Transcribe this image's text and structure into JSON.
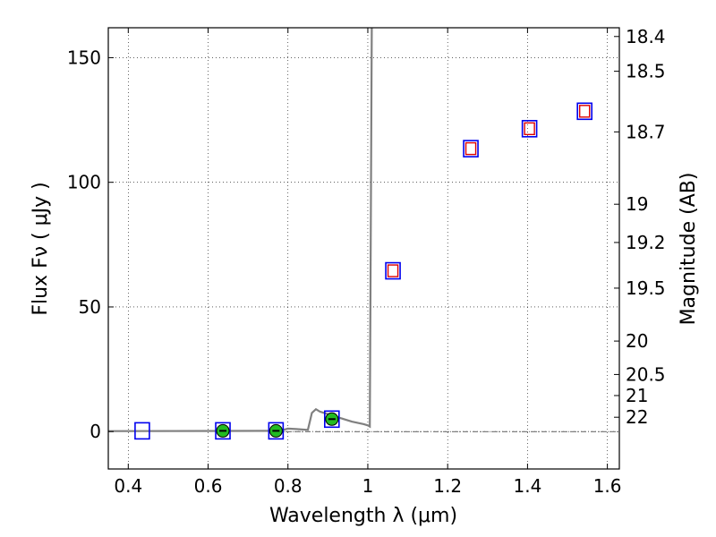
{
  "chart_data": {
    "type": "scatter",
    "title": "",
    "xlabel": "Wavelength  λ (μm)",
    "ylabel": "Flux  Fν  ( μJy )",
    "y2label": "Magnitude (AB)",
    "xlim": [
      0.35,
      1.63
    ],
    "ylim": [
      -15,
      162
    ],
    "grid": true,
    "x_ticks": [
      0.4,
      0.6,
      0.8,
      1.0,
      1.2,
      1.4,
      1.6
    ],
    "x_tick_labels": [
      "0.4",
      "0.6",
      "0.8",
      "1",
      "1.2",
      "1.4",
      "1.6"
    ],
    "y_ticks": [
      0,
      50,
      100,
      150
    ],
    "y_tick_labels": [
      "0",
      "50",
      "100",
      "150"
    ],
    "y2_ticks": [
      {
        "label": "18.4",
        "mag": 18.4
      },
      {
        "label": "18.5",
        "mag": 18.5
      },
      {
        "label": "18.7",
        "mag": 18.7
      },
      {
        "label": "19",
        "mag": 19.0
      },
      {
        "label": "19.2",
        "mag": 19.2
      },
      {
        "label": "19.5",
        "mag": 19.5
      },
      {
        "label": "20",
        "mag": 20.0
      },
      {
        "label": "20.5",
        "mag": 20.5
      },
      {
        "label": "21",
        "mag": 21.0
      },
      {
        "label": "22",
        "mag": 22.0
      }
    ],
    "model_sed": {
      "color": "#808080",
      "points": [
        [
          0.35,
          0.2
        ],
        [
          0.78,
          0.3
        ],
        [
          0.8,
          1.2
        ],
        [
          0.82,
          1.0
        ],
        [
          0.85,
          0.7
        ],
        [
          0.86,
          7.5
        ],
        [
          0.87,
          9.0
        ],
        [
          0.88,
          8.0
        ],
        [
          0.89,
          7.5
        ],
        [
          0.9,
          7.0
        ],
        [
          0.93,
          5.5
        ],
        [
          0.96,
          4.0
        ],
        [
          0.99,
          3.0
        ],
        [
          1.0,
          2.5
        ],
        [
          1.005,
          2.0
        ],
        [
          1.01,
          162
        ]
      ]
    },
    "series": [
      {
        "kind": "observed-box",
        "color": "#0000ee",
        "points": [
          {
            "x": 0.435,
            "y": 0.3
          },
          {
            "x": 0.637,
            "y": 0.3
          },
          {
            "x": 0.77,
            "y": 0.3
          },
          {
            "x": 0.91,
            "y": 5.0
          },
          {
            "x": 1.063,
            "y": 64.5
          },
          {
            "x": 1.258,
            "y": 113.5
          },
          {
            "x": 1.405,
            "y": 121.5
          },
          {
            "x": 1.543,
            "y": 128.5
          }
        ]
      },
      {
        "kind": "model-box",
        "color": "#dd0000",
        "points": [
          {
            "x": 1.063,
            "y": 64.5
          },
          {
            "x": 1.258,
            "y": 113.5
          },
          {
            "x": 1.405,
            "y": 121.5
          },
          {
            "x": 1.543,
            "y": 128.5
          }
        ]
      },
      {
        "kind": "detection",
        "color": "#22bb22",
        "points": [
          {
            "x": 0.637,
            "y": 0.3
          },
          {
            "x": 0.77,
            "y": 0.3
          },
          {
            "x": 0.91,
            "y": 5.0
          }
        ]
      }
    ]
  }
}
